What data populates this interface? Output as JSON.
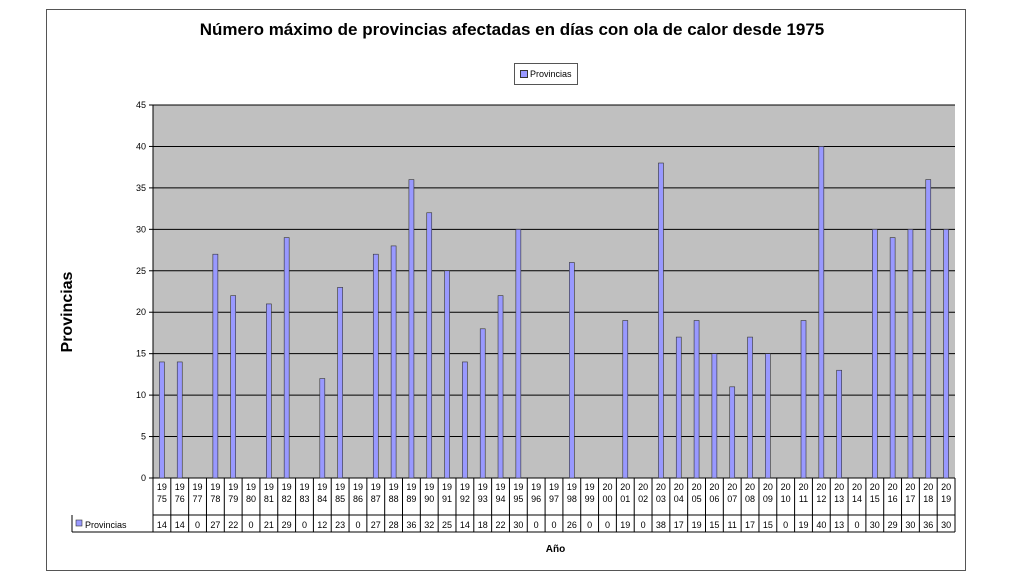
{
  "chart_data": {
    "type": "bar",
    "title": "Número máximo de provincias afectadas en días con ola de calor desde 1975",
    "xlabel": "Año",
    "ylabel": "Provincias",
    "ylim": [
      0,
      45
    ],
    "yticks": [
      0,
      5,
      10,
      15,
      20,
      25,
      30,
      35,
      40,
      45
    ],
    "grid": true,
    "legend": "top-center",
    "colors": {
      "bar": "#9999ff",
      "plot_bg": "#c0c0c0",
      "grid": "#000000"
    },
    "categories": [
      "1975",
      "1976",
      "1977",
      "1978",
      "1979",
      "1980",
      "1981",
      "1982",
      "1983",
      "1984",
      "1985",
      "1986",
      "1987",
      "1988",
      "1989",
      "1990",
      "1991",
      "1992",
      "1993",
      "1994",
      "1995",
      "1996",
      "1997",
      "1998",
      "1999",
      "2000",
      "2001",
      "2002",
      "2003",
      "2004",
      "2005",
      "2006",
      "2007",
      "2008",
      "2009",
      "2010",
      "2011",
      "2012",
      "2013",
      "2014",
      "2015",
      "2016",
      "2017",
      "2018",
      "2019"
    ],
    "series": [
      {
        "name": "Provincias",
        "values": [
          14,
          14,
          0,
          27,
          22,
          0,
          21,
          29,
          0,
          12,
          23,
          0,
          27,
          28,
          36,
          32,
          25,
          14,
          18,
          22,
          30,
          0,
          0,
          26,
          0,
          0,
          19,
          0,
          38,
          17,
          19,
          15,
          11,
          17,
          15,
          0,
          19,
          40,
          13,
          0,
          30,
          29,
          30,
          36,
          30
        ]
      }
    ]
  }
}
